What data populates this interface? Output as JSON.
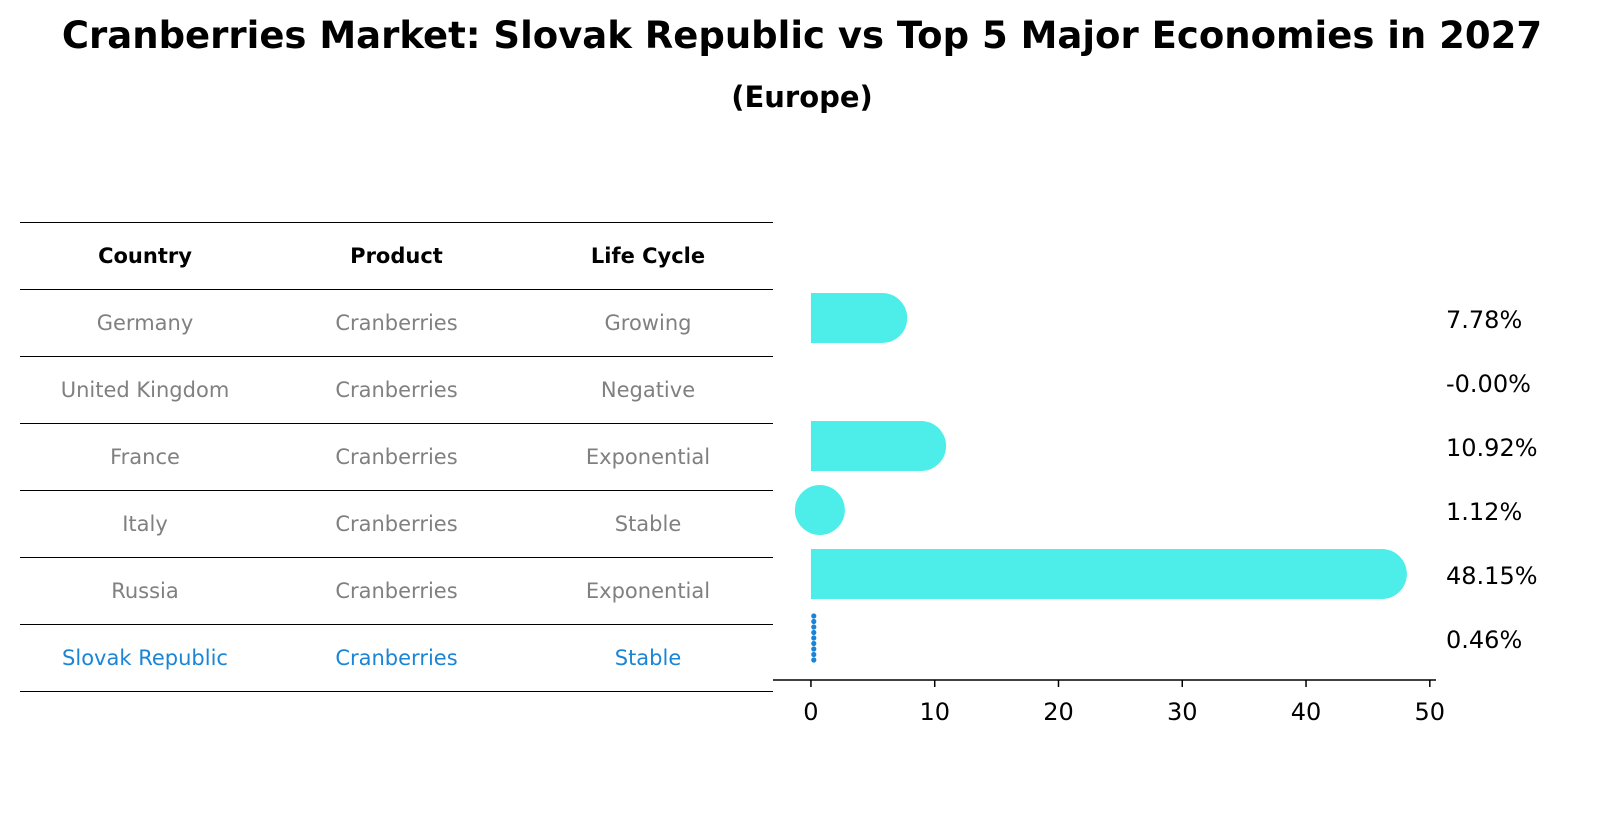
{
  "title": "Cranberries Market: Slovak Republic vs Top 5 Major Economies in 2027",
  "subtitle": "(Europe)",
  "table": {
    "headers": [
      "Country",
      "Product",
      "Life Cycle"
    ],
    "rows": [
      [
        "Germany",
        "Cranberries",
        "Growing"
      ],
      [
        "United Kingdom",
        "Cranberries",
        "Negative"
      ],
      [
        "France",
        "Cranberries",
        "Exponential"
      ],
      [
        "Italy",
        "Cranberries",
        "Stable"
      ],
      [
        "Russia",
        "Cranberries",
        "Exponential"
      ],
      [
        "Slovak Republic",
        "Cranberries",
        "Stable"
      ]
    ],
    "highlight_row": 5
  },
  "colors": {
    "bar": "#4deeea",
    "highlight": "#1a85d6",
    "muted_text": "#808080"
  },
  "chart_data": {
    "type": "bar",
    "orientation": "horizontal",
    "categories": [
      "Germany",
      "United Kingdom",
      "France",
      "Italy",
      "Russia",
      "Slovak Republic"
    ],
    "values": [
      7.78,
      -0.0,
      10.92,
      1.12,
      48.15,
      0.46
    ],
    "value_labels": [
      "7.78%",
      "-0.00%",
      "10.92%",
      "1.12%",
      "48.15%",
      "0.46%"
    ],
    "xlim": [
      -2.5,
      50.5
    ],
    "xticks": [
      0,
      10,
      20,
      30,
      40,
      50
    ],
    "xlabel": "",
    "ylabel": "",
    "grid": false
  }
}
